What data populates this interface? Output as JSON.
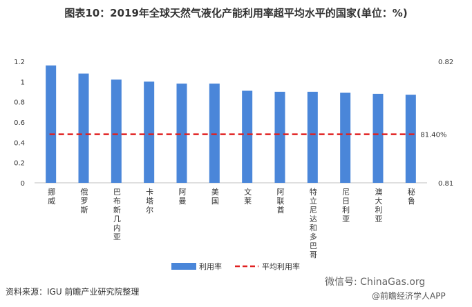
{
  "header": {
    "title": "图表10：2019年全球天然气液化产能利用率超平均水平的国家(单位：%)"
  },
  "footer": {
    "source": "资料来源：IGU 前瞻产业研究院整理",
    "wechat": "微信号: ChinaGas.org",
    "app": "@前瞻经济学人APP"
  },
  "chart_data": {
    "type": "bar",
    "title": "图表10：2019年全球天然气液化产能利用率超平均水平的国家(单位：%)",
    "categories": [
      "挪威",
      "俄罗斯",
      "巴布新几内亚",
      "卡塔尔",
      "阿曼",
      "美国",
      "文莱",
      "阿联酋",
      "特立尼达和多巴哥",
      "尼日利亚",
      "澳大利亚",
      "秘鲁"
    ],
    "series": [
      {
        "name": "利用率",
        "type": "bar",
        "axis": "left",
        "color": "#4a86d9",
        "values": [
          1.16,
          1.08,
          1.02,
          1.0,
          0.98,
          0.98,
          0.91,
          0.9,
          0.9,
          0.89,
          0.88,
          0.87
        ]
      },
      {
        "name": "平均利用率",
        "type": "line",
        "axis": "right",
        "color": "#e02020",
        "values": [
          0.814,
          0.814,
          0.814,
          0.814,
          0.814,
          0.814,
          0.814,
          0.814,
          0.814,
          0.814,
          0.814,
          0.814
        ],
        "label": "81.40%"
      }
    ],
    "left_axis": {
      "ylim": [
        0,
        1.2
      ],
      "ticks": [
        "0",
        "0.2",
        "0.4",
        "0.6",
        "0.8",
        "1",
        "1.2"
      ]
    },
    "right_axis": {
      "ylim": [
        0.81,
        0.82
      ],
      "ticks": [
        "0.81",
        "0.82"
      ]
    },
    "legend": {
      "position": "bottom",
      "entries": [
        "利用率",
        "平均利用率"
      ]
    },
    "grid": false
  }
}
